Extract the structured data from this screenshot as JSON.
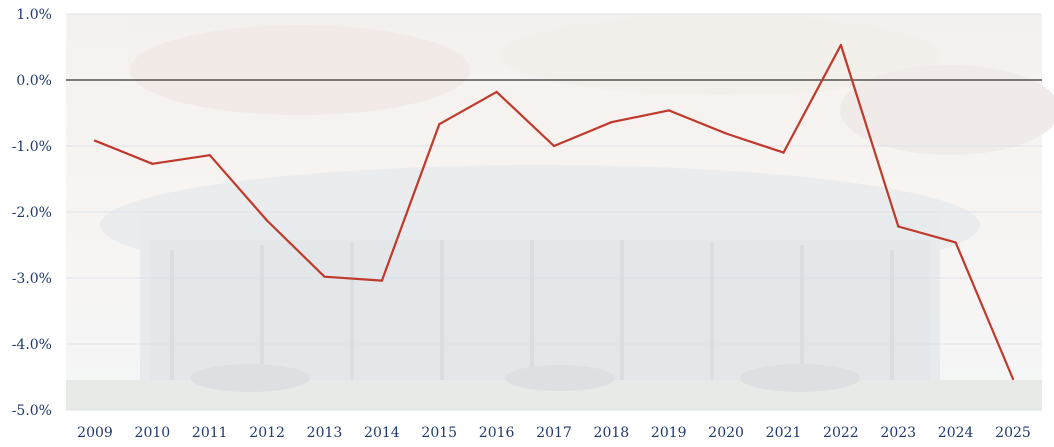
{
  "chart_data": {
    "type": "line",
    "title": "",
    "xlabel": "",
    "ylabel": "",
    "categories": [
      "2009",
      "2010",
      "2011",
      "2012",
      "2013",
      "2014",
      "2015",
      "2016",
      "2017",
      "2018",
      "2019",
      "2020",
      "2021",
      "2022",
      "2023",
      "2024",
      "2025"
    ],
    "series": [
      {
        "values": [
          -0.92,
          -1.27,
          -1.14,
          -2.13,
          -2.98,
          -3.04,
          -0.67,
          -0.18,
          -1.0,
          -0.64,
          -0.46,
          -0.81,
          -1.1,
          0.53,
          -2.22,
          -2.46,
          -4.53
        ],
        "color": "#c0392b"
      }
    ],
    "ylim": [
      -5.0,
      1.0
    ],
    "yticks": [
      "1.0%",
      "0.0%",
      "-1.0%",
      "-2.0%",
      "-3.0%",
      "-4.0%",
      "-5.0%"
    ],
    "ytick_values": [
      1.0,
      0.0,
      -1.0,
      -2.0,
      -3.0,
      -4.0,
      -5.0
    ],
    "grid": true,
    "zero_line": true,
    "background": "faded photo of car dealership showroom",
    "colors": {
      "line": "#c0392b",
      "tick_text": "#1f3a6e",
      "zero_line": "#333333",
      "gridline": "#d9dee8"
    }
  }
}
